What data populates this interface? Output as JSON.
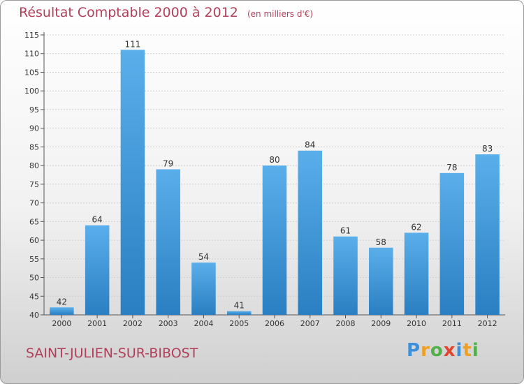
{
  "chart_data": {
    "type": "bar",
    "title": "Résultat Comptable 2000 à 2012",
    "subtitle": "(en milliers d'€)",
    "categories": [
      "2000",
      "2001",
      "2002",
      "2003",
      "2004",
      "2005",
      "2006",
      "2007",
      "2008",
      "2009",
      "2010",
      "2011",
      "2012"
    ],
    "values": [
      42,
      64,
      111,
      79,
      54,
      41,
      80,
      84,
      61,
      58,
      62,
      78,
      83
    ],
    "ylim": [
      40,
      115
    ],
    "yticks": [
      40,
      45,
      50,
      55,
      60,
      65,
      70,
      75,
      80,
      85,
      90,
      95,
      100,
      105,
      110,
      115
    ],
    "grid": true,
    "legend": "none",
    "colors": {
      "bar_light": "#5aaeea",
      "bar_dark": "#2a7fc2",
      "title": "#b0405a"
    }
  },
  "commune": "SAINT-JULIEN-SUR-BIBOST",
  "logo": {
    "letters": [
      "P",
      "r",
      "o",
      "x",
      "i",
      "t",
      "i"
    ],
    "colors": [
      "#3c8fd9",
      "#f0a020",
      "#52b04a",
      "#e0452f",
      "#3c8fd9",
      "#f0a020",
      "#52b04a"
    ]
  }
}
